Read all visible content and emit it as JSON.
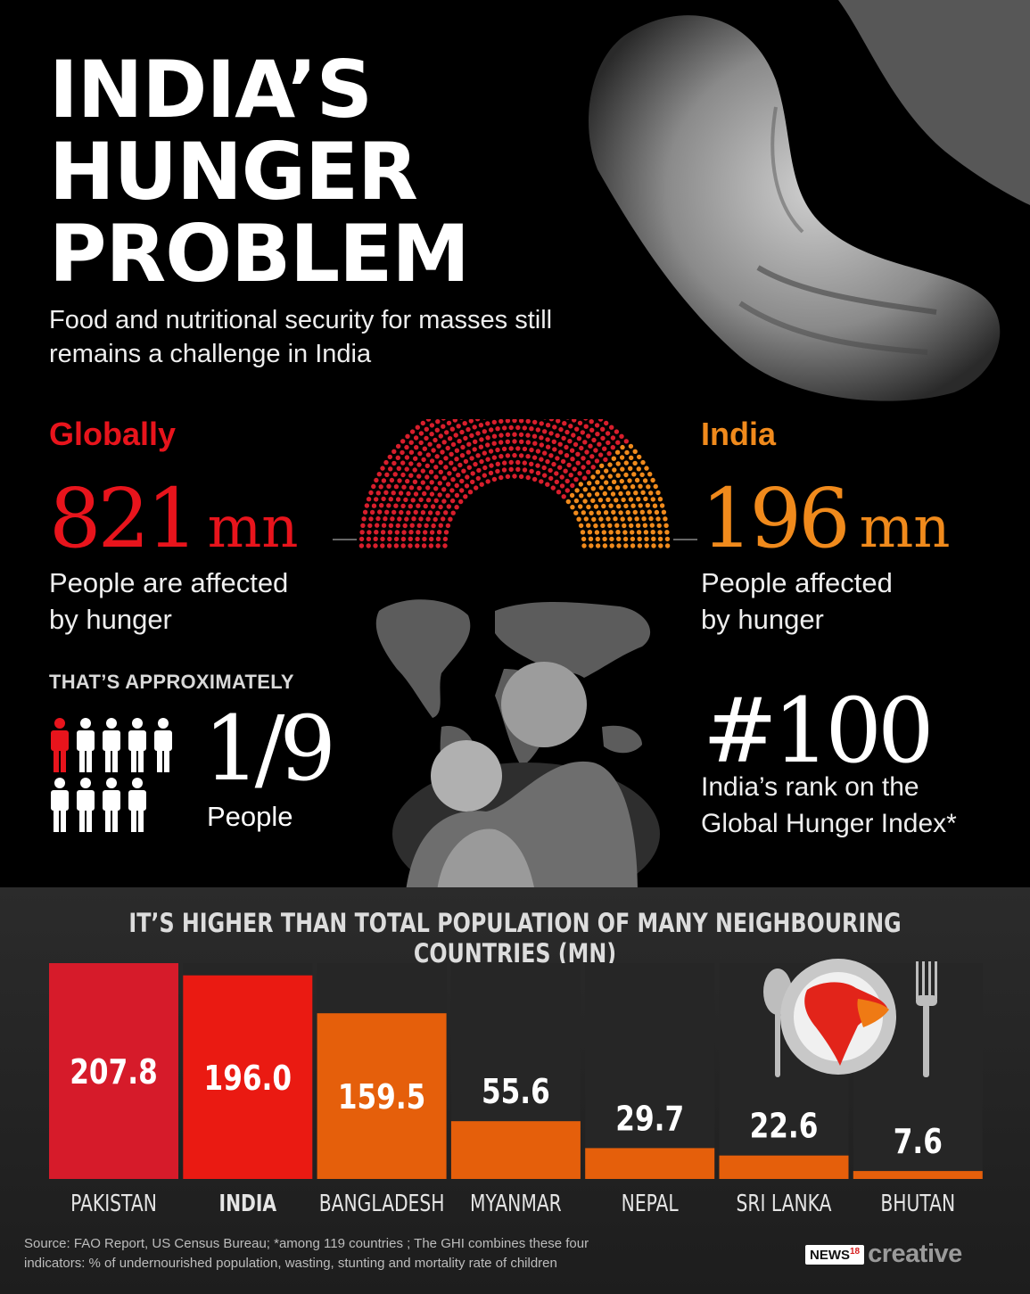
{
  "header": {
    "title_lines": [
      "INDIA’S",
      "HUNGER",
      "PROBLEM"
    ],
    "subtitle": "Food and nutritional security for masses still remains a challenge in India"
  },
  "global_stat": {
    "label": "Globally",
    "value": "821",
    "unit": "mn",
    "desc_line1": "People are affected",
    "desc_line2": "by hunger"
  },
  "india_stat": {
    "label": "India",
    "value": "196",
    "unit": "mn",
    "desc_line1": "People affected",
    "desc_line2": "by hunger"
  },
  "half_donut": {
    "global_mn": 821,
    "india_mn": 196
  },
  "ratio": {
    "label": "THAT’S APPROXIMATELY",
    "fraction": "1/9",
    "desc": "People",
    "highlighted": 1,
    "total": 9
  },
  "rank": {
    "value": "#100",
    "desc_line1": "India’s rank on the",
    "desc_line2": "Global Hunger Index*"
  },
  "chart_data": {
    "type": "bar",
    "title": "IT’S HIGHER THAN TOTAL POPULATION OF MANY NEIGHBOURING COUNTRIES (MN)",
    "categories": [
      "PAKISTAN",
      "INDIA",
      "BANGLADESH",
      "MYANMAR",
      "NEPAL",
      "SRI LANKA",
      "BHUTAN"
    ],
    "values": [
      207.8,
      196.0,
      159.5,
      55.6,
      29.7,
      22.6,
      7.6
    ],
    "value_labels": [
      "207.8",
      "196.0",
      "159.5",
      "55.6",
      "29.7",
      "22.6",
      "7.6"
    ],
    "ylim": [
      0,
      207.8
    ],
    "highlight_category": "INDIA"
  },
  "colors": {
    "red": "#e8141c",
    "crimson": "#d81e2c",
    "orange": "#e8620c",
    "gold": "#f08a1c",
    "pakistan_bar": "#d61b2a",
    "india_bar": "#ea1a12",
    "other_bar": "#e55f0b"
  },
  "footer": {
    "source_line1": "Source: FAO Report, US Census Bureau; *among 119 countries ; The GHI combines these four",
    "source_line2": "indicators: % of undernourished population, wasting, stunting and mortality rate of children",
    "logo_news": "NEWS",
    "logo_number": "18",
    "logo_creative": "creative"
  }
}
